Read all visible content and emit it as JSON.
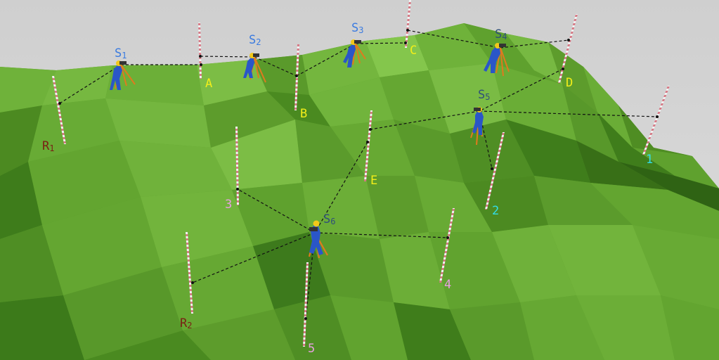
{
  "colors": {
    "sky": "#d6d6d6",
    "terrain_light": "#7fc24a",
    "terrain_mid": "#5fa12e",
    "terrain_dark": "#3d7a1c",
    "terrain_shadow": "#2e5d14",
    "surveyor_blue": "#2a56c8",
    "tripod_orange": "#e07a1e",
    "helmet_yellow": "#f2c81a",
    "sight_line": "#111111",
    "station_label_light": "#3b7be0",
    "station_label_dark": "#2f4f7a",
    "point_yellow": "#f2ee1a",
    "point_cyan": "#33dde8",
    "point_pink": "#e8a0e0",
    "reference_brown": "#7a1f14"
  },
  "stations": [
    {
      "id": "S1",
      "letter": "S",
      "num": "1"
    },
    {
      "id": "S2",
      "letter": "S",
      "num": "2"
    },
    {
      "id": "S3",
      "letter": "S",
      "num": "3"
    },
    {
      "id": "S4",
      "letter": "S",
      "num": "4"
    },
    {
      "id": "S5",
      "letter": "S",
      "num": "5"
    },
    {
      "id": "S6",
      "letter": "S",
      "num": "6"
    }
  ],
  "turning_points": [
    "A",
    "B",
    "C",
    "D",
    "E"
  ],
  "benchmarks": [
    {
      "id": "R1",
      "letter": "R",
      "num": "1"
    },
    {
      "id": "R2",
      "letter": "R",
      "num": "2"
    }
  ],
  "points": [
    "1",
    "2",
    "3",
    "4",
    "5"
  ]
}
